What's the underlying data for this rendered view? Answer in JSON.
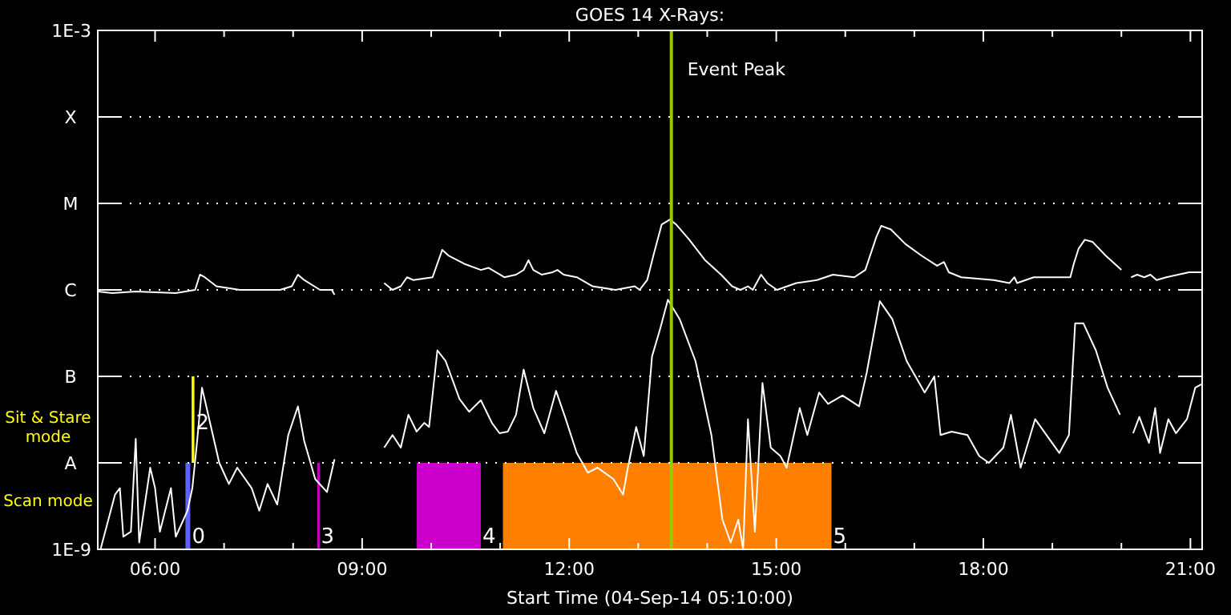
{
  "chart_data": {
    "type": "line",
    "title": "GOES 14 X-Rays:",
    "xlabel": "Start Time (04-Sep-14 05:10:00)",
    "log": "y",
    "grid": "y",
    "line_style": "solid",
    "xlim": [
      5.17,
      21.17
    ],
    "xticks": [
      {
        "value": 6,
        "label": "06:00"
      },
      {
        "value": 7,
        "label": null
      },
      {
        "value": 8,
        "label": null
      },
      {
        "value": 9,
        "label": "09:00"
      },
      {
        "value": 10,
        "label": null
      },
      {
        "value": 11,
        "label": null
      },
      {
        "value": 12,
        "label": "12:00"
      },
      {
        "value": 13,
        "label": null
      },
      {
        "value": 14,
        "label": null
      },
      {
        "value": 15,
        "label": "15:00"
      },
      {
        "value": 16,
        "label": null
      },
      {
        "value": 17,
        "label": null
      },
      {
        "value": 18,
        "label": "18:00"
      },
      {
        "value": 19,
        "label": null
      },
      {
        "value": 20,
        "label": null
      },
      {
        "value": 21,
        "label": "21:00"
      }
    ],
    "ylim": [
      1e-09,
      0.001
    ],
    "yticks": [
      {
        "value": 1e-09,
        "label": "1E-9"
      },
      {
        "value": 1e-08,
        "label": "A"
      },
      {
        "value": 1e-07,
        "label": "B"
      },
      {
        "value": 1e-06,
        "label": "C"
      },
      {
        "value": 1e-05,
        "label": "M"
      },
      {
        "value": 0.0001,
        "label": "X"
      },
      {
        "value": 0.001,
        "label": "1E-3"
      }
    ],
    "series": [
      {
        "color": "#ffffff",
        "x": [
          5.17,
          5.38,
          5.72,
          6.3,
          6.58,
          6.65,
          6.72,
          6.89,
          7.23,
          7.81,
          7.98,
          8.07,
          8.16,
          8.39,
          8.56,
          8.6,
          9.0,
          9.32,
          9.44,
          9.56,
          9.65,
          9.74,
          10.02,
          10.16,
          10.25,
          10.48,
          10.72,
          10.83,
          11.06,
          11.23,
          11.34,
          11.41,
          11.48,
          11.6,
          11.76,
          11.83,
          11.92,
          12.11,
          12.34,
          12.67,
          12.95,
          13.02,
          13.13,
          13.22,
          13.34,
          13.46,
          13.55,
          13.74,
          13.97,
          14.2,
          14.36,
          14.48,
          14.59,
          14.66,
          14.78,
          14.87,
          15.01,
          15.29,
          15.59,
          15.82,
          16.13,
          16.29,
          16.45,
          16.52,
          16.66,
          16.87,
          17.1,
          17.33,
          17.43,
          17.5,
          17.68,
          18.15,
          18.38,
          18.45,
          18.49,
          18.73,
          19.26,
          19.31,
          19.38,
          19.47,
          19.58,
          19.77,
          20.0,
          20.07,
          20.14,
          20.23,
          20.33,
          20.42,
          20.51,
          20.65,
          20.98,
          21.16
        ],
        "values": [
          9.6e-07,
          9.2e-07,
          9.6e-07,
          9.2e-07,
          1e-06,
          1.5e-06,
          1.4e-06,
          1.1e-06,
          1e-06,
          1e-06,
          1.1e-06,
          1.5e-06,
          1.3e-06,
          1e-06,
          1e-06,
          8.8e-07,
          null,
          1.2e-06,
          1e-06,
          1.1e-06,
          1.4e-06,
          1.3e-06,
          1.4e-06,
          2.9e-06,
          2.5e-06,
          2e-06,
          1.7e-06,
          1.8e-06,
          1.4e-06,
          1.5e-06,
          1.7e-06,
          2.2e-06,
          1.7e-06,
          1.5e-06,
          1.6e-06,
          1.7e-06,
          1.5e-06,
          1.4e-06,
          1.1e-06,
          1e-06,
          1.1e-06,
          1e-06,
          1.3e-06,
          2.5e-06,
          5.7e-06,
          6.5e-06,
          5.7e-06,
          3.8e-06,
          2.2e-06,
          1.5e-06,
          1.1e-06,
          1e-06,
          1.1e-06,
          1e-06,
          1.5e-06,
          1.2e-06,
          1e-06,
          1.2e-06,
          1.3e-06,
          1.5e-06,
          1.4e-06,
          1.7e-06,
          4.1e-06,
          5.5e-06,
          5e-06,
          3.4e-06,
          2.5e-06,
          1.9e-06,
          2.1e-06,
          1.6e-06,
          1.4e-06,
          1.3e-06,
          1.2e-06,
          1.4e-06,
          1.2e-06,
          1.4e-06,
          1.4e-06,
          2e-06,
          3e-06,
          3.8e-06,
          3.6e-06,
          2.5e-06,
          1.7e-06,
          null,
          1.4e-06,
          1.5e-06,
          1.4e-06,
          1.5e-06,
          1.3e-06,
          1.4e-06,
          1.6e-06,
          1.6e-06
        ]
      },
      {
        "color": "#ffffff",
        "x": [
          5.21,
          5.42,
          5.49,
          5.54,
          5.65,
          5.72,
          5.77,
          5.93,
          6.0,
          6.07,
          6.23,
          6.3,
          6.47,
          6.54,
          6.61,
          6.68,
          6.77,
          6.93,
          7.07,
          7.19,
          7.4,
          7.51,
          7.63,
          7.77,
          7.93,
          8.07,
          8.16,
          8.32,
          8.49,
          8.6,
          9.0,
          9.32,
          9.44,
          9.56,
          9.67,
          9.79,
          9.9,
          9.97,
          10.09,
          10.21,
          10.41,
          10.55,
          10.72,
          10.88,
          10.99,
          11.11,
          11.23,
          11.34,
          11.48,
          11.64,
          11.81,
          11.95,
          12.11,
          12.27,
          12.41,
          12.64,
          12.78,
          12.85,
          12.97,
          13.08,
          13.2,
          13.32,
          13.43,
          13.6,
          13.83,
          14.06,
          14.22,
          14.34,
          14.45,
          14.52,
          14.59,
          14.69,
          14.8,
          14.92,
          15.06,
          15.15,
          15.34,
          15.45,
          15.62,
          15.75,
          15.96,
          16.2,
          16.31,
          16.5,
          16.68,
          16.89,
          17.15,
          17.29,
          17.38,
          17.54,
          17.77,
          17.94,
          18.08,
          18.29,
          18.4,
          18.54,
          18.75,
          19.1,
          19.24,
          19.33,
          19.45,
          19.63,
          19.8,
          19.98,
          20.07,
          20.17,
          20.26,
          20.4,
          20.49,
          20.56,
          20.68,
          20.79,
          20.95,
          21.07,
          21.16
        ],
        "values": [
          1e-09,
          4.3e-09,
          5.1e-09,
          1.4e-09,
          1.6e-09,
          1.9e-08,
          1.2e-09,
          8.8e-09,
          5.1e-09,
          1.6e-09,
          5.1e-09,
          1.4e-09,
          2.8e-09,
          5.1e-09,
          1.8e-08,
          7.4e-08,
          3.6e-08,
          1e-08,
          5.7e-09,
          8.8e-09,
          5.1e-09,
          2.8e-09,
          5.7e-09,
          3.3e-09,
          2.1e-08,
          4.5e-08,
          1.8e-08,
          6.5e-09,
          4.6e-09,
          1.1e-08,
          null,
          1.5e-08,
          2.1e-08,
          1.5e-08,
          3.6e-08,
          2.3e-08,
          2.9e-08,
          2.6e-08,
          2e-07,
          1.5e-07,
          5.5e-08,
          3.9e-08,
          5.3e-08,
          2.9e-08,
          2.2e-08,
          2.3e-08,
          3.6e-08,
          1.2e-07,
          4.3e-08,
          2.2e-08,
          6.8e-08,
          3.2e-08,
          1.3e-08,
          7.7e-09,
          8.8e-09,
          6.5e-09,
          4.3e-09,
          8.8e-09,
          2.6e-08,
          1.2e-08,
          1.7e-07,
          3.6e-07,
          7.7e-07,
          4.6e-07,
          1.5e-07,
          2.1e-08,
          2.2e-09,
          1.2e-09,
          2.2e-09,
          1e-09,
          3.2e-08,
          1.6e-09,
          8.4e-08,
          1.5e-08,
          1.2e-08,
          8.8e-09,
          4.3e-08,
          2.1e-08,
          6.5e-08,
          4.8e-08,
          6e-08,
          4.5e-08,
          1.1e-07,
          7.4e-07,
          4.6e-07,
          1.5e-07,
          6.5e-08,
          1e-07,
          2.1e-08,
          2.3e-08,
          2.1e-08,
          1.2e-08,
          1e-08,
          1.5e-08,
          3.6e-08,
          8.8e-09,
          3.2e-08,
          1.3e-08,
          2.1e-08,
          4.1e-07,
          4.1e-07,
          2e-07,
          7.4e-08,
          3.6e-08,
          null,
          2.2e-08,
          3.4e-08,
          1.7e-08,
          4.3e-08,
          1.3e-08,
          3.2e-08,
          2.2e-08,
          3.2e-08,
          7.4e-08,
          8.1e-08
        ]
      }
    ],
    "ref_lines": [
      {
        "axis": "x",
        "value": 13.48,
        "label": "Event Peak",
        "color": "#99cc00"
      }
    ],
    "bands": [
      {
        "axis": "x",
        "from": 6.44,
        "to": 6.51,
        "label": "0",
        "color": "#6060ff"
      },
      {
        "axis": "x",
        "from": 6.53,
        "to": 6.57,
        "label": "2",
        "color": "#ffff00"
      },
      {
        "axis": "x",
        "from": 8.35,
        "to": 8.38,
        "label": "3",
        "color": "#cc00cc"
      },
      {
        "axis": "x",
        "from": 9.79,
        "to": 10.72,
        "label": "4",
        "color": "#cc00cc"
      },
      {
        "axis": "x",
        "from": 11.04,
        "to": 15.8,
        "label": "5",
        "color": "#ff8000"
      }
    ],
    "annotations": [
      "Sit & Stare mode",
      "Scan mode"
    ]
  }
}
